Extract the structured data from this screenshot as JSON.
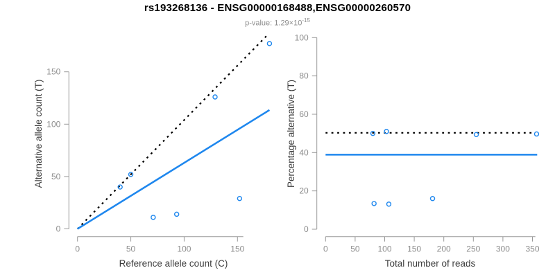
{
  "header": {
    "title": "rs193268136 - ENSG00000168488,ENSG00000260570",
    "subtitle_prefix": "p-value: 1.29×10",
    "subtitle_exponent": "-15"
  },
  "colors": {
    "accent_blue": "#1E87EE",
    "dotted_black": "#000000",
    "axis_line_gray": "#999999",
    "tick_label_gray": "#8c8c8c",
    "axis_title_color": "#3d3d3d",
    "subtitle_gray": "#8c8c8c"
  },
  "chart_data": [
    {
      "type": "scatter",
      "panel": "left",
      "xlabel": "Reference allele count (C)",
      "ylabel": "Alternative allele count (T)",
      "xticks": [
        0,
        50,
        100,
        150
      ],
      "yticks": [
        0,
        50,
        100,
        150
      ],
      "xlim": [
        0,
        155
      ],
      "ylim": [
        0,
        150
      ],
      "grid": false,
      "points": [
        [
          40,
          40
        ],
        [
          50,
          52
        ],
        [
          71,
          11
        ],
        [
          93,
          14
        ],
        [
          152,
          29
        ],
        [
          129,
          126
        ],
        [
          180,
          177
        ]
      ],
      "lines": [
        {
          "name": "expected-50-50-line",
          "style": "dotted",
          "color": "#000000",
          "width": 2.2,
          "from": [
            0,
            0
          ],
          "to": [
            177,
            184
          ]
        },
        {
          "name": "fitted-proportion-line",
          "style": "solid",
          "color": "#1E87EE",
          "width": 2.6,
          "from": [
            0,
            0
          ],
          "to": [
            180,
            113.5
          ]
        }
      ]
    },
    {
      "type": "scatter",
      "panel": "right",
      "xlabel": "Total number of reads",
      "ylabel": "Percentage alternative (T)",
      "xticks": [
        0,
        50,
        100,
        150,
        200,
        250,
        300,
        350
      ],
      "yticks": [
        0,
        20,
        40,
        60,
        80,
        100
      ],
      "xlim": [
        0,
        355
      ],
      "ylim": [
        0,
        100
      ],
      "grid": false,
      "points": [
        [
          80,
          50
        ],
        [
          103,
          51
        ],
        [
          82,
          13.4
        ],
        [
          107,
          13.1
        ],
        [
          181,
          16
        ],
        [
          255,
          49.4
        ],
        [
          357,
          49.7
        ]
      ],
      "lines": [
        {
          "name": "expected-50pct-line",
          "style": "dotted",
          "color": "#000000",
          "width": 2.2,
          "from": [
            0,
            50.3
          ],
          "to": [
            352,
            50.3
          ]
        },
        {
          "name": "fitted-pct-line",
          "style": "solid",
          "color": "#1E87EE",
          "width": 2.6,
          "from": [
            0,
            38.9
          ],
          "to": [
            358,
            38.9
          ]
        }
      ]
    }
  ]
}
